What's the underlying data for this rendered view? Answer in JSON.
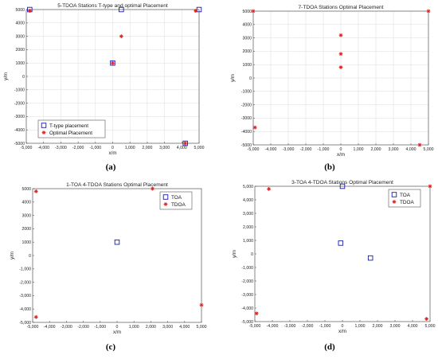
{
  "chart_data": [
    {
      "type": "scatter",
      "caption": "(a)",
      "title": "5-TDOA Stations T-type and optimal Placement",
      "xlabel": "x/m",
      "ylabel": "y/m",
      "xlim": [
        -5000,
        5000
      ],
      "ylim": [
        -5000,
        5000
      ],
      "xticks": [
        "-5,000",
        "-4,000",
        "-3,000",
        "-2,000",
        "-1,000",
        "0",
        "1,000",
        "2,000",
        "3,000",
        "4,000",
        "5,000"
      ],
      "yticks": [
        "5000",
        "4000",
        "3000",
        "2000",
        "1000",
        "0",
        "-1000",
        "-2000",
        "-3000",
        "-4000",
        "-5000"
      ],
      "grid": true,
      "legend": "bottom-left",
      "series": [
        {
          "name": "T-type placement",
          "marker": "square",
          "color": "#1a1aa6",
          "x": [
            -4800,
            500,
            5000,
            0,
            4200
          ],
          "y": [
            5000,
            5000,
            5000,
            1000,
            -5000
          ]
        },
        {
          "name": "Optimal Placement",
          "marker": "asterisk",
          "color": "#e02020",
          "x": [
            -4800,
            500,
            4800,
            0,
            4200
          ],
          "y": [
            4900,
            3000,
            4900,
            1000,
            -5000
          ]
        }
      ]
    },
    {
      "type": "scatter",
      "caption": "(b)",
      "title": "7-TDOA Stations Optimal Placement",
      "xlabel": "x/m",
      "ylabel": "y/m",
      "xlim": [
        -5000,
        5000
      ],
      "ylim": [
        -5000,
        5000
      ],
      "xticks": [
        "-5,000",
        "-4,000",
        "-3,000",
        "-2,000",
        "-1,000",
        "0",
        "1,000",
        "2,000",
        "3,000",
        "4,000",
        "5,000"
      ],
      "yticks": [
        "5000",
        "4000",
        "3000",
        "2000",
        "1000",
        "0",
        "-1000",
        "-2000",
        "-3000",
        "-4000",
        "-5000"
      ],
      "grid": true,
      "legend": "none",
      "series": [
        {
          "name": "",
          "marker": "asterisk",
          "color": "#e02020",
          "x": [
            -5000,
            0,
            0,
            0,
            -4900,
            4500,
            5000
          ],
          "y": [
            5000,
            3200,
            1800,
            800,
            -3700,
            -5000,
            5000
          ]
        }
      ]
    },
    {
      "type": "scatter",
      "caption": "(c)",
      "title": "1-TOA 4-TDOA Stations Optimal Placement",
      "xlabel": "x/m",
      "ylabel": "y/m",
      "xlim": [
        -5000,
        5000
      ],
      "ylim": [
        -5000,
        5000
      ],
      "xticks": [
        "-5,000",
        "-4,000",
        "-3,000",
        "-2,000",
        "-1,000",
        "0",
        "1,000",
        "2,000",
        "3,000",
        "4,000",
        "5,000"
      ],
      "yticks": [
        "5000",
        "4000",
        "3000",
        "2000",
        "1000",
        "0",
        "-1,000",
        "-2,000",
        "-3,000",
        "-4,000",
        "-5,000"
      ],
      "grid": false,
      "legend": "top-right",
      "series": [
        {
          "name": "TOA",
          "marker": "square",
          "color": "#1a1aa6",
          "x": [
            0
          ],
          "y": [
            1000
          ]
        },
        {
          "name": "TDOA",
          "marker": "asterisk",
          "color": "#e02020",
          "x": [
            -4800,
            2100,
            -4800,
            5000
          ],
          "y": [
            4800,
            5000,
            -4600,
            -3700
          ]
        }
      ]
    },
    {
      "type": "scatter",
      "caption": "(d)",
      "title": "3-TOA 4-TDOA Stations Optimal Placement",
      "xlabel": "x/m",
      "ylabel": "y/m",
      "xlim": [
        -5000,
        5000
      ],
      "ylim": [
        -5000,
        5000
      ],
      "xticks": [
        "-5,000",
        "-4,000",
        "-3,000",
        "-2,000",
        "-1,000",
        "0",
        "1,000",
        "2,000",
        "3,000",
        "4,000",
        "5,000"
      ],
      "yticks": [
        "5,000",
        "4,000",
        "3,000",
        "2,000",
        "1,000",
        "0",
        "-1,000",
        "-2,000",
        "-3,000",
        "-4,000",
        "-5,000"
      ],
      "grid": false,
      "legend": "top-right",
      "series": [
        {
          "name": "TOA",
          "marker": "square",
          "color": "#1a1aa6",
          "x": [
            0,
            -100,
            1600
          ],
          "y": [
            5000,
            800,
            -300
          ]
        },
        {
          "name": "TDOA",
          "marker": "asterisk",
          "color": "#e02020",
          "x": [
            -4200,
            5000,
            -4900,
            4800
          ],
          "y": [
            4800,
            5000,
            -4400,
            -4800
          ]
        }
      ]
    }
  ]
}
